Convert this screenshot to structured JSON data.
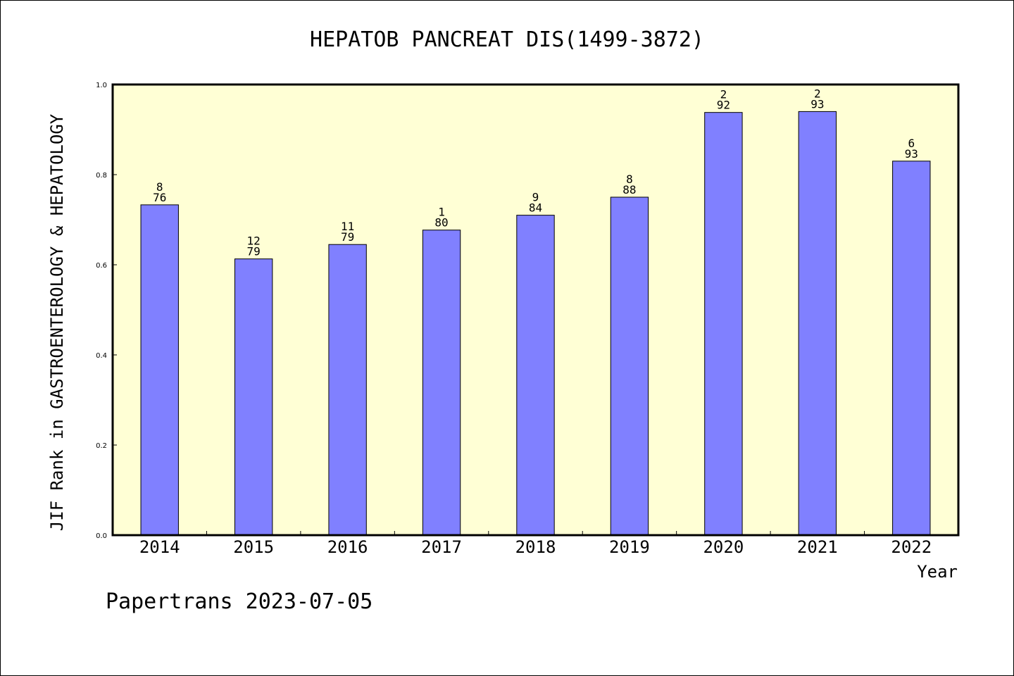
{
  "footer": "Papertrans 2023-07-05",
  "colors": {
    "plot_background": "#ffffd5",
    "bar_fill": "#8080ff",
    "frame": "#000000"
  },
  "chart_data": {
    "type": "bar",
    "title": "HEPATOB PANCREAT DIS(1499-3872)",
    "xlabel": "Year",
    "ylabel": "JIF Rank in GASTROENTEROLOGY & HEPATOLOGY",
    "ylim": [
      0,
      1.0
    ],
    "yticks": [
      "0.0",
      "0.2",
      "0.4",
      "0.6",
      "0.8",
      "1.0"
    ],
    "grid": false,
    "categories": [
      "2014",
      "2015",
      "2016",
      "2017",
      "2018",
      "2019",
      "2020",
      "2021",
      "2022"
    ],
    "values": [
      0.733,
      0.613,
      0.645,
      0.677,
      0.71,
      0.75,
      0.938,
      0.94,
      0.83
    ],
    "rank_labels": [
      "8",
      "12",
      "11",
      "1",
      "9",
      "8",
      "2",
      "2",
      "6"
    ],
    "total_labels": [
      "76",
      "79",
      "79",
      "80",
      "84",
      "88",
      "92",
      "93",
      "93"
    ]
  }
}
